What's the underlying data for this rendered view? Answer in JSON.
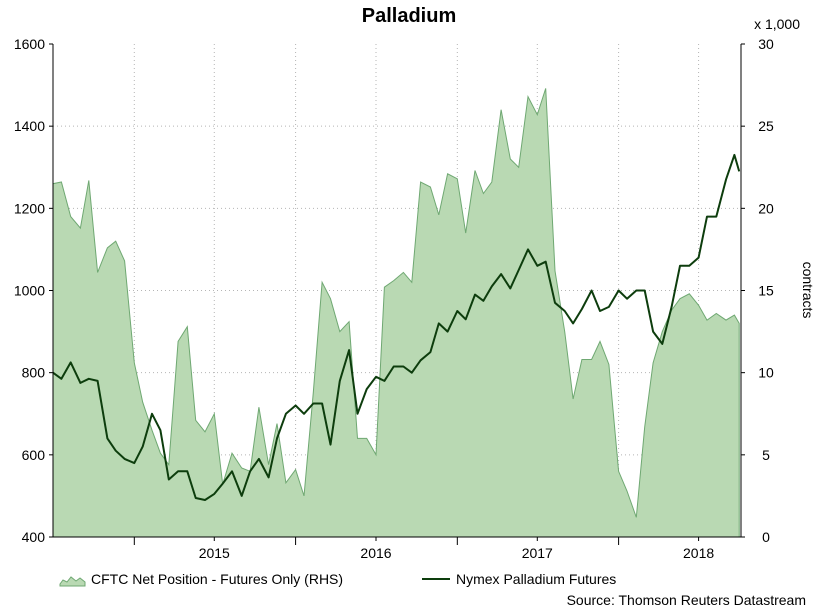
{
  "chart_data": {
    "type": "area",
    "title": "Palladium",
    "x_ticks": [
      "2015",
      "2016",
      "2017",
      "2018"
    ],
    "x_range": [
      "2014-07",
      "2018-10"
    ],
    "y_left": {
      "ticks": [
        "400",
        "600",
        "800",
        "1000",
        "1200",
        "1400",
        "1600"
      ],
      "range": [
        400,
        1600
      ]
    },
    "y_right": {
      "label": "contracts",
      "multiplier": "x 1,000",
      "ticks": [
        "0",
        "5",
        "10",
        "15",
        "20",
        "25",
        "30"
      ],
      "range": [
        0,
        30
      ]
    },
    "grid": true,
    "legend_position": "bottom",
    "source": "Source: Thomson Reuters Datastream",
    "colors": {
      "area_fill": "#b9d9b3",
      "area_edge": "#6fa872",
      "line": "#0d3d0d",
      "grid": "#b5b5b5"
    },
    "series": [
      {
        "name": "CFTC Net Position - Futures Only (RHS)",
        "type": "area",
        "axis": "right",
        "x": [
          "2014-07-01",
          "2014-07-20",
          "2014-08-10",
          "2014-09-01",
          "2014-09-20",
          "2014-10-10",
          "2014-11-01",
          "2014-11-20",
          "2014-12-10",
          "2015-01-01",
          "2015-01-20",
          "2015-02-10",
          "2015-03-01",
          "2015-03-20",
          "2015-04-10",
          "2015-05-01",
          "2015-05-20",
          "2015-06-10",
          "2015-07-01",
          "2015-07-20",
          "2015-08-10",
          "2015-09-01",
          "2015-09-20",
          "2015-10-10",
          "2015-11-01",
          "2015-11-20",
          "2015-12-10",
          "2016-01-01",
          "2016-01-20",
          "2016-02-10",
          "2016-03-01",
          "2016-03-20",
          "2016-04-10",
          "2016-05-01",
          "2016-05-20",
          "2016-06-10",
          "2016-07-01",
          "2016-07-20",
          "2016-08-10",
          "2016-09-01",
          "2016-09-20",
          "2016-10-10",
          "2016-11-01",
          "2016-11-20",
          "2016-12-10",
          "2017-01-01",
          "2017-01-20",
          "2017-02-10",
          "2017-03-01",
          "2017-03-20",
          "2017-04-10",
          "2017-05-01",
          "2017-05-20",
          "2017-06-10",
          "2017-07-01",
          "2017-07-20",
          "2017-08-10",
          "2017-09-01",
          "2017-09-20",
          "2017-10-10",
          "2017-11-01",
          "2017-11-20",
          "2017-12-10",
          "2018-01-01",
          "2018-01-20",
          "2018-02-10",
          "2018-03-01",
          "2018-03-20",
          "2018-04-10",
          "2018-05-01",
          "2018-05-20",
          "2018-06-10",
          "2018-07-01",
          "2018-07-20",
          "2018-08-10",
          "2018-09-01",
          "2018-09-20",
          "2018-10-01"
        ],
        "values": [
          21.5,
          21.6,
          19.5,
          18.8,
          21.7,
          16.1,
          17.6,
          18.0,
          16.8,
          10.6,
          8.2,
          6.5,
          5.1,
          4.4,
          11.9,
          12.8,
          7.1,
          6.4,
          7.5,
          3.2,
          5.1,
          4.2,
          4.0,
          7.9,
          4.4,
          6.9,
          3.3,
          4.1,
          2.5,
          8.8,
          15.5,
          14.5,
          12.5,
          13.1,
          6.0,
          6.0,
          5.0,
          15.2,
          15.6,
          16.1,
          15.5,
          21.6,
          21.3,
          19.6,
          22.1,
          21.8,
          18.5,
          22.3,
          20.9,
          21.6,
          26.0,
          23.0,
          22.5,
          26.8,
          25.7,
          27.3,
          16.2,
          12.5,
          8.4,
          10.8,
          10.8,
          11.9,
          10.5,
          4.0,
          2.8,
          1.2,
          6.7,
          10.6,
          12.5,
          13.8,
          14.5,
          14.8,
          14.1,
          13.2,
          13.6,
          13.2,
          13.5,
          13.0
        ]
      },
      {
        "name": "Nymex Palladium Futures",
        "type": "line",
        "axis": "left",
        "x": [
          "2014-07-01",
          "2014-07-20",
          "2014-08-10",
          "2014-09-01",
          "2014-09-20",
          "2014-10-10",
          "2014-11-01",
          "2014-11-20",
          "2014-12-10",
          "2015-01-01",
          "2015-01-20",
          "2015-02-10",
          "2015-03-01",
          "2015-03-20",
          "2015-04-10",
          "2015-05-01",
          "2015-05-20",
          "2015-06-10",
          "2015-07-01",
          "2015-07-20",
          "2015-08-10",
          "2015-09-01",
          "2015-09-20",
          "2015-10-10",
          "2015-11-01",
          "2015-11-20",
          "2015-12-10",
          "2016-01-01",
          "2016-01-20",
          "2016-02-10",
          "2016-03-01",
          "2016-03-20",
          "2016-04-10",
          "2016-05-01",
          "2016-05-20",
          "2016-06-10",
          "2016-07-01",
          "2016-07-20",
          "2016-08-10",
          "2016-09-01",
          "2016-09-20",
          "2016-10-10",
          "2016-11-01",
          "2016-11-20",
          "2016-12-10",
          "2017-01-01",
          "2017-01-20",
          "2017-02-10",
          "2017-03-01",
          "2017-03-20",
          "2017-04-10",
          "2017-05-01",
          "2017-05-20",
          "2017-06-10",
          "2017-07-01",
          "2017-07-20",
          "2017-08-10",
          "2017-09-01",
          "2017-09-20",
          "2017-10-10",
          "2017-11-01",
          "2017-11-20",
          "2017-12-10",
          "2018-01-01",
          "2018-01-20",
          "2018-02-10",
          "2018-03-01",
          "2018-03-20",
          "2018-04-10",
          "2018-05-01",
          "2018-05-20",
          "2018-06-10",
          "2018-07-01",
          "2018-07-20",
          "2018-08-10",
          "2018-09-01",
          "2018-09-20",
          "2018-10-01"
        ],
        "values": [
          800,
          785,
          825,
          775,
          785,
          780,
          640,
          610,
          590,
          580,
          620,
          700,
          660,
          540,
          560,
          560,
          495,
          490,
          505,
          530,
          560,
          500,
          560,
          590,
          545,
          640,
          700,
          720,
          700,
          725,
          725,
          625,
          780,
          855,
          700,
          760,
          790,
          780,
          815,
          815,
          800,
          830,
          850,
          920,
          900,
          950,
          930,
          990,
          975,
          1010,
          1040,
          1005,
          1050,
          1100,
          1060,
          1070,
          970,
          950,
          920,
          955,
          1000,
          950,
          960,
          1000,
          980,
          1000,
          1000,
          900,
          870,
          960,
          1060,
          1060,
          1080,
          1180,
          1180,
          1270,
          1330,
          1290
        ]
      }
    ]
  }
}
